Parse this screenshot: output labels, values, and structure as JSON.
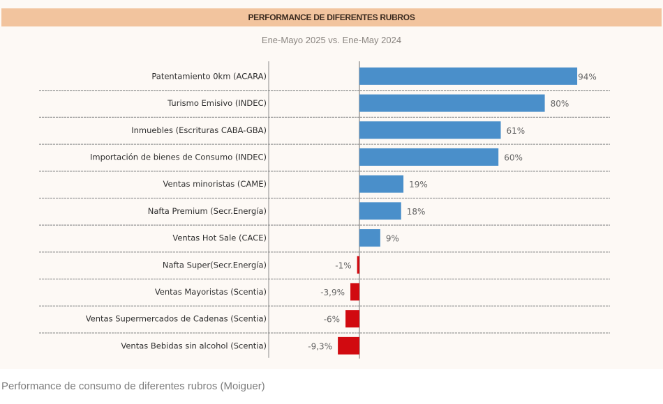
{
  "header": {
    "title": "PERFORMANCE DE DIFERENTES RUBROS",
    "subtitle": "Ene-Mayo 2025 vs. Ene-May 2024"
  },
  "caption": "Performance de consumo de diferentes rubros (Moiguer)",
  "colors": {
    "positive": "#4a8fca",
    "negative": "#d10a10",
    "header_band": "#f2c49e"
  },
  "chart_data": {
    "type": "bar",
    "orientation": "horizontal",
    "title": "PERFORMANCE DE DIFERENTES RUBROS",
    "subtitle": "Ene-Mayo 2025 vs. Ene-May 2024",
    "xlabel": "",
    "ylabel": "",
    "unit": "%",
    "xlim": [
      -10,
      100
    ],
    "grid": false,
    "legend": "none",
    "categories": [
      "Patentamiento 0km (ACARA)",
      "Turismo Emisivo (INDEC)",
      "Inmuebles (Escrituras CABA-GBA)",
      "Importación de bienes de Consumo (INDEC)",
      "Ventas minoristas (CAME)",
      "Nafta Premium (Secr.Energía)",
      "Ventas Hot Sale (CACE)",
      "Nafta Super(Secr.Energía)",
      "Ventas Mayoristas (Scentia)",
      "Ventas Supermercados de Cadenas (Scentia)",
      "Ventas Bebidas sin alcohol (Scentia)"
    ],
    "values": [
      94,
      80,
      61,
      60,
      19,
      18,
      9,
      -1,
      -3.9,
      -6,
      -9.3
    ],
    "data_labels": [
      "94%",
      "80%",
      "61%",
      "60%",
      "19%",
      "18%",
      "9%",
      "-1%",
      "-3,9%",
      "-6%",
      "-9,3%"
    ]
  }
}
